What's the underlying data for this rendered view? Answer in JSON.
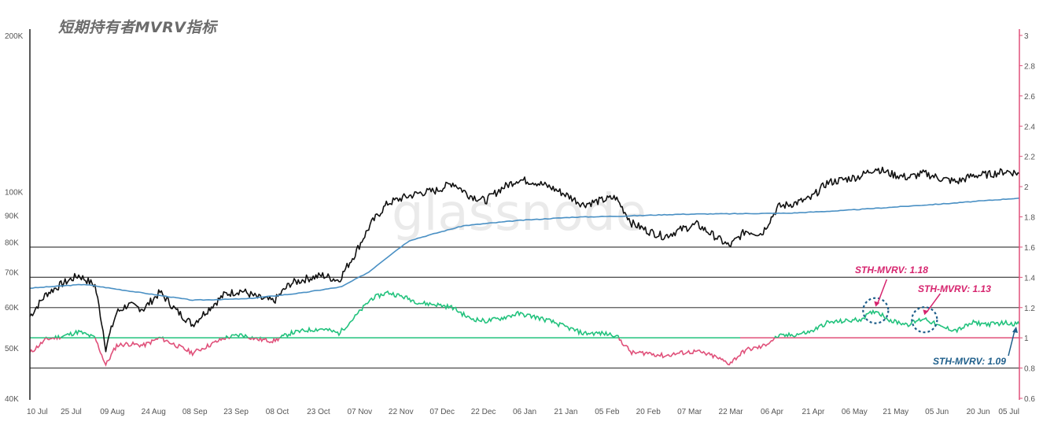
{
  "title": "短期持有者MVRV指标",
  "watermark": "glassnode",
  "colors": {
    "price": "#111111",
    "sma": "#4a90c4",
    "mvrv_high": "#22c27d",
    "mvrv_low": "#e0507a",
    "baseline": "#e0507a",
    "ref_lines": "#555555",
    "axis_right": "#e0507a",
    "axis_left": "#222222",
    "annot_pink": "#d6246e",
    "annot_blue": "#1f5f8b"
  },
  "chart_data": {
    "type": "line",
    "x_tick_labels": [
      "10 Jul",
      "25 Jul",
      "09 Aug",
      "24 Aug",
      "08 Sep",
      "23 Sep",
      "08 Oct",
      "23 Oct",
      "07 Nov",
      "22 Nov",
      "07 Dec",
      "22 Dec",
      "06 Jan",
      "21 Jan",
      "05 Feb",
      "20 Feb",
      "07 Mar",
      "22 Mar",
      "06 Apr",
      "21 Apr",
      "06 May",
      "21 May",
      "05 Jun",
      "20 Jun",
      "05 Jul"
    ],
    "x_range_days": [
      0,
      365
    ],
    "y_left": {
      "scale": "log",
      "range": [
        40000,
        200000
      ],
      "tick_labels": [
        "200K",
        "100K",
        "90K",
        "80K",
        "70K",
        "60K",
        "50K",
        "40K"
      ],
      "tick_values": [
        200000,
        100000,
        90000,
        80000,
        70000,
        60000,
        50000,
        40000
      ]
    },
    "y_right": {
      "scale": "linear",
      "range": [
        0.6,
        3
      ],
      "tick_labels": [
        "3",
        "2.8",
        "2.6",
        "2.4",
        "2.2",
        "2",
        "1.8",
        "1.6",
        "1.4",
        "1.2",
        "1",
        "0.8",
        "0.6"
      ],
      "tick_values": [
        3,
        2.8,
        2.6,
        2.4,
        2.2,
        2,
        1.8,
        1.6,
        1.4,
        1.2,
        1,
        0.8,
        0.6
      ]
    },
    "reference_lines_right": [
      1.6,
      1.4,
      1.2,
      0.8
    ],
    "baseline_right": 1.0,
    "series": [
      {
        "axis": "left",
        "x_days": [
          0,
          6,
          12,
          18,
          24,
          28,
          32,
          36,
          42,
          48,
          54,
          60,
          66,
          72,
          78,
          84,
          90,
          96,
          102,
          108,
          114,
          120,
          126,
          132,
          138,
          144,
          150,
          156,
          162,
          168,
          174,
          180,
          186,
          192,
          198,
          204,
          210,
          216,
          222,
          228,
          234,
          240,
          246,
          252,
          258,
          264,
          270,
          276,
          282,
          288,
          294,
          300,
          306,
          312,
          318,
          324,
          330,
          336,
          342,
          348,
          354,
          360,
          365
        ],
        "values": [
          57500,
          63500,
          66500,
          69000,
          66000,
          50000,
          58500,
          60500,
          59500,
          64000,
          59000,
          55500,
          59500,
          63500,
          64500,
          62500,
          61500,
          66500,
          68000,
          69000,
          67500,
          76000,
          87000,
          95000,
          97500,
          99500,
          100500,
          104000,
          98500,
          96000,
          101500,
          105500,
          104500,
          102000,
          98500,
          94500,
          96000,
          97500,
          87000,
          84000,
          82000,
          84500,
          86500,
          82500,
          78500,
          84000,
          83000,
          93500,
          95000,
          97000,
          104000,
          105500,
          107000,
          111000,
          108000,
          106500,
          108500,
          106000,
          104500,
          107500,
          108000,
          109500,
          108500
        ]
      },
      {
        "axis": "left",
        "x_days": [
          0,
          20,
          40,
          60,
          80,
          100,
          115,
          125,
          140,
          160,
          180,
          200,
          220,
          240,
          260,
          280,
          300,
          320,
          340,
          360,
          365
        ],
        "values": [
          65200,
          66300,
          64000,
          61800,
          62200,
          63800,
          65600,
          70000,
          80500,
          86000,
          88000,
          89300,
          89800,
          90500,
          90700,
          90900,
          92000,
          93500,
          95000,
          96800,
          97200
        ]
      },
      {
        "axis": "right",
        "x_days": [
          0,
          6,
          12,
          18,
          24,
          28,
          32,
          36,
          42,
          48,
          54,
          60,
          66,
          72,
          78,
          84,
          90,
          96,
          102,
          108,
          114,
          120,
          126,
          132,
          138,
          144,
          150,
          156,
          162,
          168,
          174,
          180,
          186,
          192,
          198,
          204,
          210,
          216,
          222,
          228,
          234,
          240,
          246,
          252,
          258,
          264,
          270,
          276,
          282,
          288,
          294,
          300,
          306,
          312,
          318,
          324,
          330,
          336,
          342,
          348,
          354,
          360,
          365
        ],
        "values": [
          0.9,
          0.99,
          1.01,
          1.04,
          1.0,
          0.82,
          0.95,
          0.96,
          0.95,
          1.0,
          0.95,
          0.9,
          0.95,
          1.0,
          1.02,
          0.99,
          0.98,
          1.03,
          1.05,
          1.06,
          1.03,
          1.14,
          1.26,
          1.3,
          1.27,
          1.23,
          1.22,
          1.2,
          1.13,
          1.11,
          1.13,
          1.16,
          1.14,
          1.11,
          1.07,
          1.03,
          1.03,
          1.02,
          0.9,
          0.9,
          0.88,
          0.9,
          0.91,
          0.88,
          0.83,
          0.92,
          0.94,
          1.01,
          1.02,
          1.04,
          1.1,
          1.11,
          1.12,
          1.18,
          1.11,
          1.09,
          1.13,
          1.07,
          1.05,
          1.1,
          1.09,
          1.1,
          1.09
        ]
      }
    ],
    "annotations": [
      {
        "text": "STH-MVRV: 1.18",
        "x_day": 312,
        "value": 1.18
      },
      {
        "text": "STH-MVRV: 1.13",
        "x_day": 330,
        "value": 1.13
      },
      {
        "text": "STH-MVRV: 1.09",
        "x_day": 365,
        "value": 1.09
      }
    ]
  }
}
